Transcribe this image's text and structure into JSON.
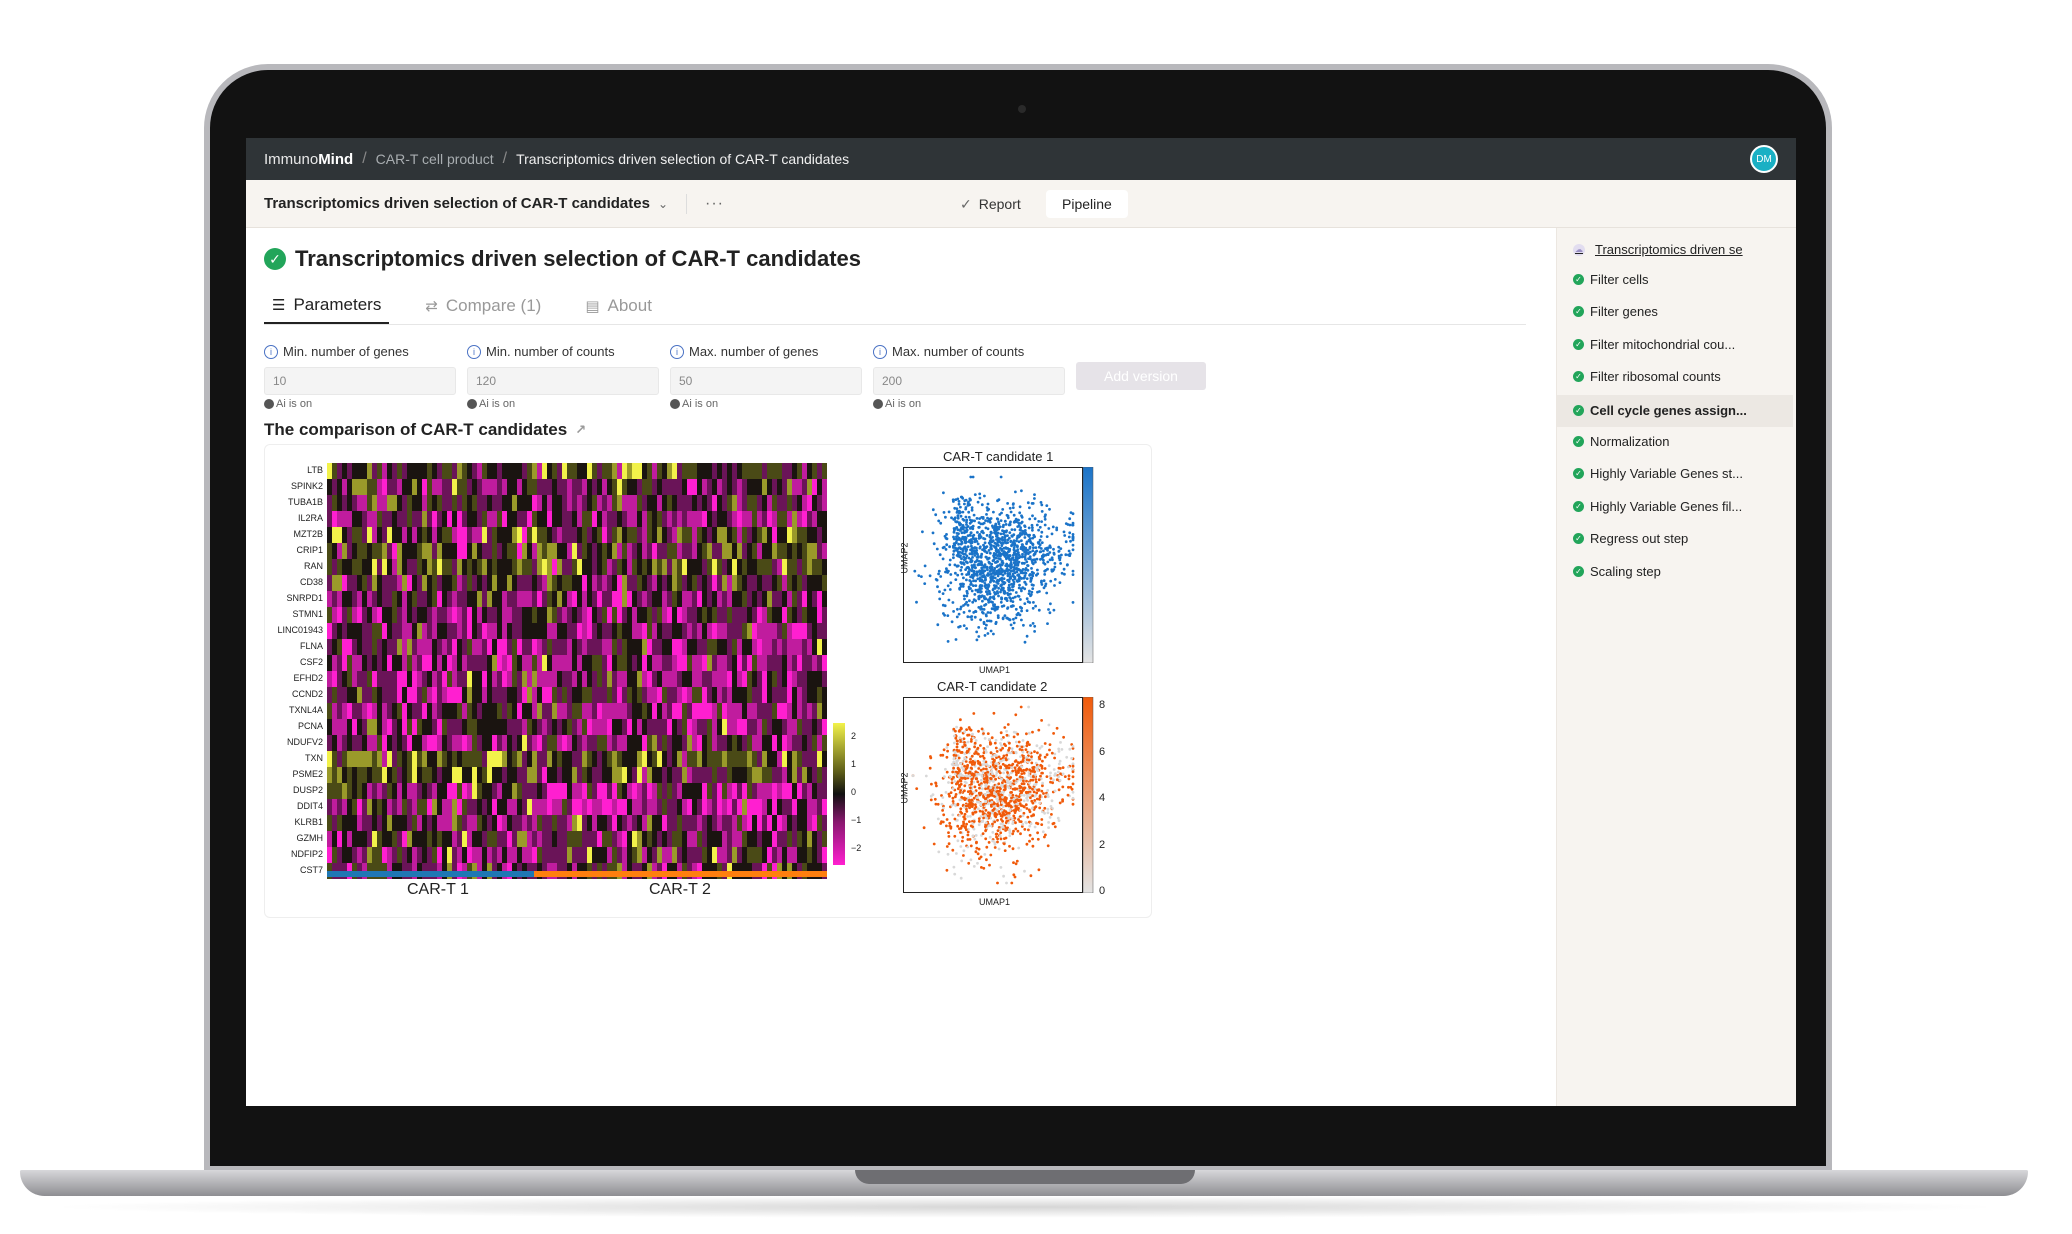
{
  "topbar": {
    "brand_prefix": "Immuno",
    "brand_bold": "Mind",
    "crumb1": "CAR-T cell product",
    "crumb2": "Transcriptomics driven selection of CAR-T candidates",
    "avatar": "DM"
  },
  "subbar": {
    "title": "Transcriptomics driven selection of CAR-T candidates",
    "more": "···",
    "report_label": "Report",
    "pipeline_label": "Pipeline"
  },
  "main": {
    "title": "Transcriptomics driven selection of CAR-T candidates",
    "tabs": [
      {
        "label": "Parameters",
        "icon": "sliders-icon"
      },
      {
        "label": "Compare (1)",
        "icon": "compare-icon"
      },
      {
        "label": "About",
        "icon": "document-icon"
      }
    ],
    "params": [
      {
        "label": "Min. number of genes",
        "value": "10",
        "ai": "Ai is on"
      },
      {
        "label": "Min. number of counts",
        "value": "120",
        "ai": "Ai is on"
      },
      {
        "label": "Max. number of genes",
        "value": "50",
        "ai": "Ai is on"
      },
      {
        "label": "Max. number of counts",
        "value": "200",
        "ai": "Ai is on"
      }
    ],
    "add_version": "Add version",
    "section_title": "The comparison of CAR-T candidates"
  },
  "heatmap": {
    "genes": [
      "LTB",
      "SPINK2",
      "TUBA1B",
      "IL2RA",
      "MZT2B",
      "CRIP1",
      "RAN",
      "CD38",
      "SNRPD1",
      "STMN1",
      "LINC01943",
      "FLNA",
      "CSF2",
      "EFHD2",
      "CCND2",
      "TXNL4A",
      "PCNA",
      "NDUFV2",
      "TXN",
      "PSME2",
      "DUSP2",
      "DDIT4",
      "KLRB1",
      "GZMH",
      "NDFIP2",
      "CST7"
    ],
    "groups": [
      "CAR-T 1",
      "CAR-T 2"
    ],
    "group_colors": [
      "#1f77b4",
      "#ff7f0e"
    ],
    "colorbar_ticks": [
      "2",
      "1",
      "0",
      "−1",
      "−2"
    ]
  },
  "umap1": {
    "title": "CAR-T candidate 1",
    "xlabel": "UMAP1",
    "ylabel": "UMAP2",
    "color": "#1a73c8"
  },
  "umap2": {
    "title": "CAR-T candidate 2",
    "xlabel": "UMAP1",
    "ylabel": "UMAP2",
    "color": "#f05a0a",
    "colorbar_ticks": [
      "8",
      "6",
      "4",
      "2",
      "0"
    ]
  },
  "sidebar": {
    "head": "Transcriptomics driven se",
    "items": [
      "Filter cells",
      "Filter genes",
      "Filter mitochondrial cou...",
      "Filter ribosomal counts",
      "Cell cycle genes assign...",
      "Normalization",
      "Highly Variable Genes st...",
      "Highly Variable Genes fil...",
      "Regress out step",
      "Scaling step"
    ]
  }
}
